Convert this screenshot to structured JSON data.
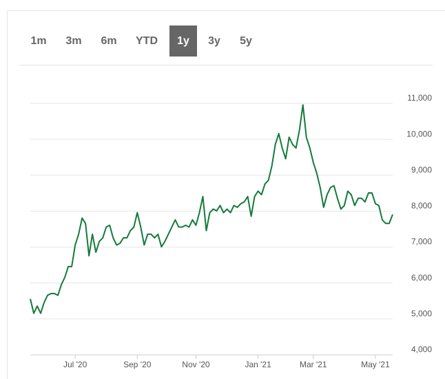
{
  "chart_data": {
    "type": "line",
    "ranges": [
      "1m",
      "3m",
      "6m",
      "YTD",
      "1y",
      "3y",
      "5y"
    ],
    "active_range": "1y",
    "series": [
      {
        "color": "#137a3a",
        "values": [
          5500,
          5100,
          5300,
          5100,
          5400,
          5600,
          5650,
          5650,
          5600,
          5900,
          6100,
          6400,
          6400,
          7000,
          7300,
          7750,
          7600,
          6700,
          7300,
          6800,
          7100,
          7200,
          7500,
          7550,
          7200,
          7000,
          7050,
          7200,
          7200,
          7400,
          7500,
          7900,
          7500,
          7000,
          7300,
          7300,
          7200,
          7300,
          6950,
          7100,
          7300,
          7500,
          7700,
          7500,
          7500,
          7550,
          7500,
          7700,
          7550,
          7900,
          8350,
          7400,
          7900,
          8000,
          7950,
          8100,
          7900,
          8000,
          7900,
          8100,
          8050,
          8150,
          8200,
          8350,
          7800,
          8350,
          8500,
          8400,
          8700,
          8800,
          9200,
          9800,
          10100,
          9700,
          9400,
          10000,
          9800,
          9700,
          10200,
          10900,
          10000,
          9700,
          9300,
          9000,
          8600,
          8050,
          8400,
          8600,
          8650,
          8300,
          8000,
          8100,
          8500,
          8400,
          8100,
          8300,
          8300,
          8200,
          8450,
          8450,
          8150,
          8100,
          7700,
          7600,
          7600,
          7850
        ]
      }
    ],
    "xlim": [
      0,
      105
    ],
    "xticks": [
      {
        "value": 13,
        "label": "Jul '20"
      },
      {
        "value": 31,
        "label": "Sep '20"
      },
      {
        "value": 48,
        "label": "Nov '20"
      },
      {
        "value": 66,
        "label": "Jan '21"
      },
      {
        "value": 82,
        "label": "Mar '21"
      },
      {
        "value": 100,
        "label": "May '21"
      }
    ],
    "ylim": [
      4000,
      11000
    ],
    "yticks": [
      {
        "value": 4000,
        "label": "4,000"
      },
      {
        "value": 5000,
        "label": "5,000"
      },
      {
        "value": 6000,
        "label": "6,000"
      },
      {
        "value": 7000,
        "label": "7,000"
      },
      {
        "value": 8000,
        "label": "8,000"
      },
      {
        "value": 9000,
        "label": "9,000"
      },
      {
        "value": 10000,
        "label": "10,000"
      },
      {
        "value": 11000,
        "label": "11,000"
      }
    ],
    "grid": true
  }
}
